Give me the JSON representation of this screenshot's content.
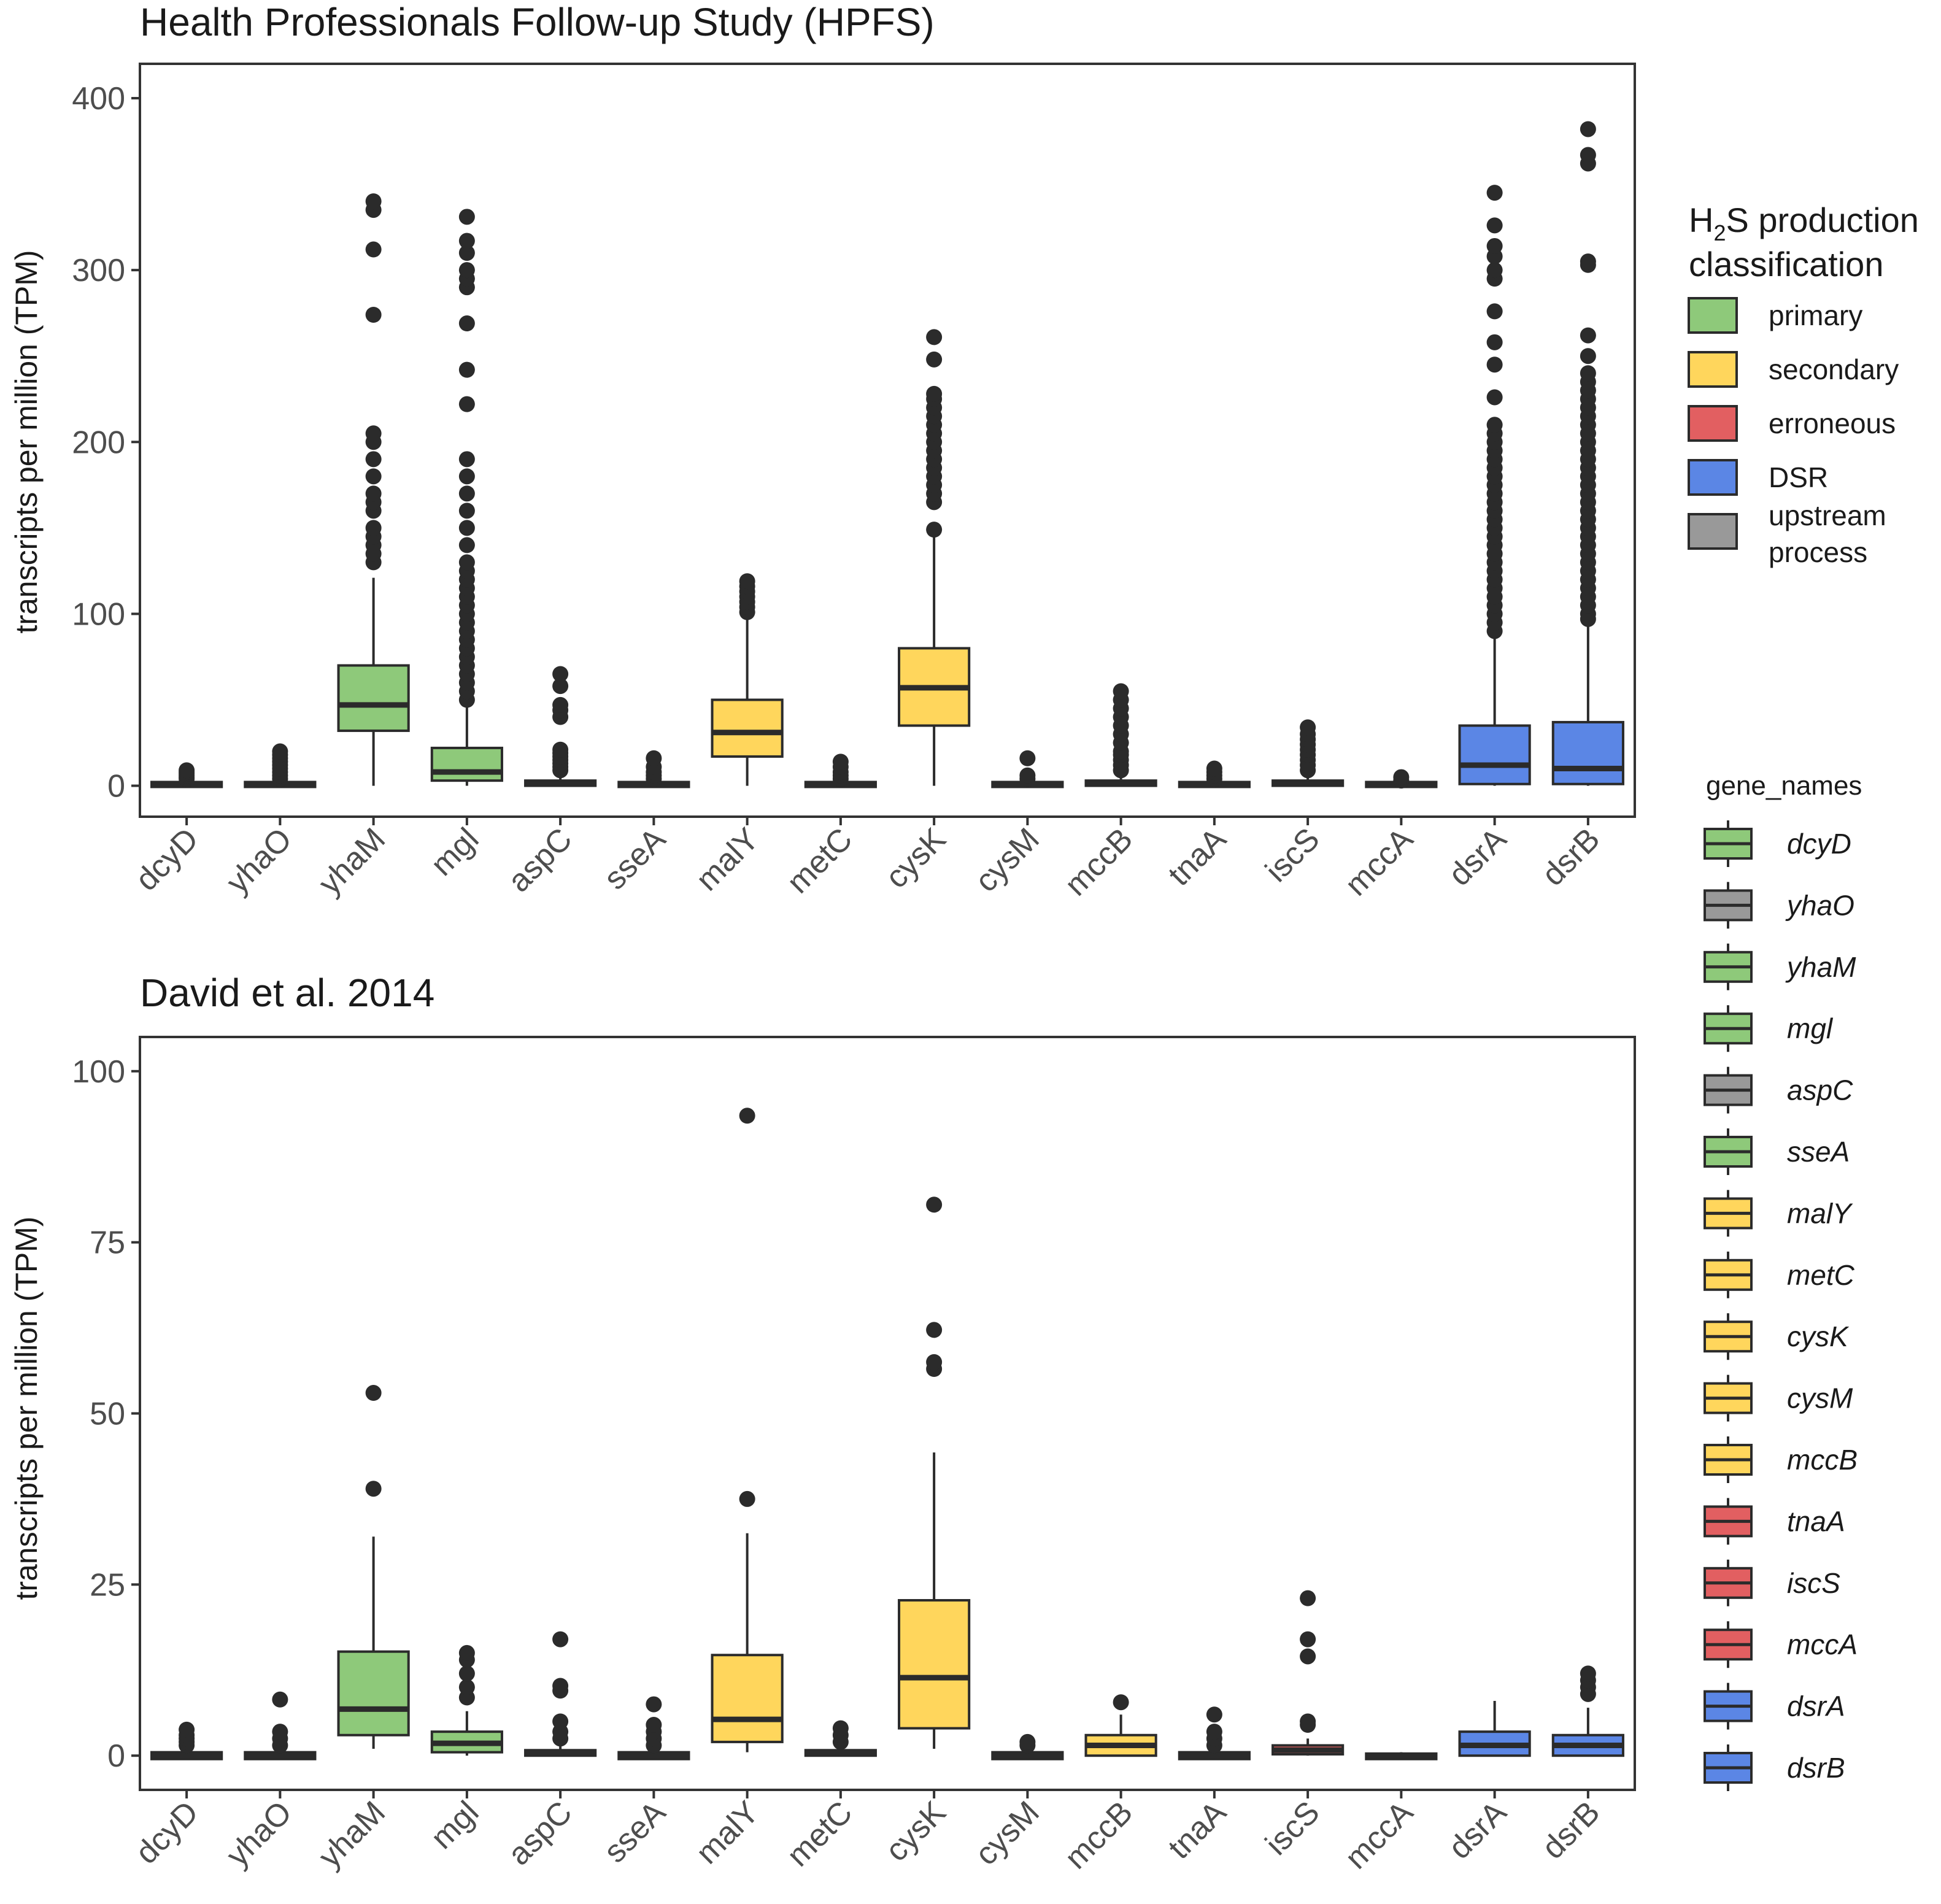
{
  "colors": {
    "primary": "#8ec97a",
    "secondary": "#ffd65c",
    "erroneous": "#e25f61",
    "DSR": "#5b86e5",
    "upstream process": "#999999",
    "outline": "#2b2b2b",
    "point": "#2b2b2b"
  },
  "chart_data": [
    {
      "type": "box",
      "title": "Health Professionals Follow-up Study (HPFS)",
      "xlabel": "",
      "ylabel": "transcripts per million (TPM)",
      "ylim": [
        -18,
        420
      ],
      "yticks": [
        0,
        100,
        200,
        300,
        400
      ],
      "categories": [
        "dcyD",
        "yhaO",
        "yhaM",
        "mgl",
        "aspC",
        "sseA",
        "malY",
        "metC",
        "cysK",
        "cysM",
        "mccB",
        "tnaA",
        "iscS",
        "mccA",
        "dsrA",
        "dsrB"
      ],
      "classes": [
        "primary",
        "upstream process",
        "primary",
        "primary",
        "upstream process",
        "primary",
        "secondary",
        "secondary",
        "secondary",
        "secondary",
        "secondary",
        "erroneous",
        "erroneous",
        "erroneous",
        "DSR",
        "DSR"
      ],
      "boxes": [
        {
          "q1": 0,
          "median": 0.5,
          "q3": 1.5,
          "lo": 0,
          "hi": 3,
          "outliers": [
            4,
            5,
            6,
            7,
            8,
            9
          ]
        },
        {
          "q1": 0,
          "median": 0.5,
          "q3": 1.5,
          "lo": 0,
          "hi": 3,
          "outliers": [
            4,
            6,
            8,
            10,
            12,
            14,
            16,
            18,
            20
          ]
        },
        {
          "q1": 32,
          "median": 47,
          "q3": 70,
          "lo": 0,
          "hi": 121,
          "outliers": [
            130,
            135,
            140,
            145,
            150,
            160,
            165,
            170,
            180,
            190,
            200,
            205,
            274,
            312,
            335,
            340
          ]
        },
        {
          "q1": 3,
          "median": 8,
          "q3": 22,
          "lo": 0,
          "hi": 47,
          "outliers": [
            50,
            55,
            60,
            65,
            70,
            75,
            80,
            85,
            90,
            95,
            100,
            105,
            110,
            115,
            120,
            125,
            130,
            140,
            150,
            160,
            170,
            180,
            190,
            222,
            242,
            269,
            290,
            295,
            300,
            310,
            317,
            331
          ]
        },
        {
          "q1": 0,
          "median": 1,
          "q3": 3,
          "lo": 0,
          "hi": 7,
          "outliers": [
            9,
            11,
            13,
            15,
            17,
            19,
            21,
            40,
            44,
            47,
            58,
            65
          ]
        },
        {
          "q1": 0,
          "median": 0.5,
          "q3": 1.5,
          "lo": 0,
          "hi": 3,
          "outliers": [
            4,
            6,
            8,
            11,
            16
          ]
        },
        {
          "q1": 17,
          "median": 31,
          "q3": 50,
          "lo": 0,
          "hi": 99,
          "outliers": [
            101,
            104,
            107,
            110,
            113,
            116,
            119
          ]
        },
        {
          "q1": 0,
          "median": 0.5,
          "q3": 1.5,
          "lo": 0,
          "hi": 3,
          "outliers": [
            4,
            6,
            8,
            11,
            14
          ]
        },
        {
          "q1": 35,
          "median": 57,
          "q3": 80,
          "lo": 0,
          "hi": 147,
          "outliers": [
            149,
            165,
            170,
            175,
            180,
            185,
            190,
            195,
            200,
            205,
            210,
            215,
            220,
            225,
            228,
            248,
            261
          ]
        },
        {
          "q1": 0,
          "median": 0.5,
          "q3": 1.5,
          "lo": 0,
          "hi": 3,
          "outliers": [
            4,
            6,
            16
          ]
        },
        {
          "q1": 0,
          "median": 1,
          "q3": 3,
          "lo": 0,
          "hi": 7,
          "outliers": [
            9,
            12,
            15,
            18,
            20,
            25,
            30,
            35,
            40,
            45,
            50,
            55
          ]
        },
        {
          "q1": 0,
          "median": 0.5,
          "q3": 1.5,
          "lo": 0,
          "hi": 3,
          "outliers": [
            4,
            6,
            8,
            10
          ]
        },
        {
          "q1": 0,
          "median": 1,
          "q3": 3,
          "lo": 0,
          "hi": 7,
          "outliers": [
            9,
            12,
            15,
            18,
            21,
            24,
            27,
            30,
            34
          ]
        },
        {
          "q1": 0,
          "median": 0.5,
          "q3": 1.5,
          "lo": 0,
          "hi": 2,
          "outliers": [
            3,
            5
          ]
        },
        {
          "q1": 1,
          "median": 12,
          "q3": 35,
          "lo": 0,
          "hi": 86,
          "outliers": [
            90,
            95,
            100,
            105,
            110,
            115,
            120,
            125,
            130,
            135,
            140,
            145,
            150,
            155,
            160,
            165,
            170,
            175,
            180,
            185,
            190,
            195,
            200,
            205,
            210,
            226,
            245,
            258,
            276,
            295,
            300,
            308,
            314,
            326,
            345
          ]
        },
        {
          "q1": 1,
          "median": 10,
          "q3": 37,
          "lo": 0,
          "hi": 94,
          "outliers": [
            97,
            100,
            105,
            110,
            115,
            120,
            125,
            130,
            135,
            140,
            145,
            150,
            155,
            160,
            165,
            170,
            175,
            180,
            185,
            190,
            195,
            200,
            205,
            210,
            215,
            220,
            225,
            230,
            235,
            240,
            250,
            262,
            303,
            305,
            362,
            367,
            382
          ]
        }
      ]
    },
    {
      "type": "box",
      "title": "David et al. 2014",
      "xlabel": "",
      "ylabel": "transcripts per million (TPM)",
      "ylim": [
        -5,
        105
      ],
      "yticks": [
        0,
        25,
        50,
        75,
        100
      ],
      "categories": [
        "dcyD",
        "yhaO",
        "yhaM",
        "mgl",
        "aspC",
        "sseA",
        "malY",
        "metC",
        "cysK",
        "cysM",
        "mccB",
        "tnaA",
        "iscS",
        "mccA",
        "dsrA",
        "dsrB"
      ],
      "classes": [
        "primary",
        "upstream process",
        "primary",
        "primary",
        "upstream process",
        "primary",
        "secondary",
        "secondary",
        "secondary",
        "secondary",
        "secondary",
        "erroneous",
        "erroneous",
        "erroneous",
        "DSR",
        "DSR"
      ],
      "boxes": [
        {
          "q1": -0.5,
          "median": 0,
          "q3": 0.5,
          "lo": -0.5,
          "hi": 1,
          "outliers": [
            1.5,
            2,
            2.5,
            3,
            3.8
          ]
        },
        {
          "q1": -0.5,
          "median": 0,
          "q3": 0.5,
          "lo": -0.5,
          "hi": 1,
          "outliers": [
            1.5,
            2.5,
            3.5,
            8.2
          ]
        },
        {
          "q1": 3,
          "median": 6.8,
          "q3": 15.2,
          "lo": 1,
          "hi": 32,
          "outliers": [
            39,
            53
          ]
        },
        {
          "q1": 0.5,
          "median": 1.8,
          "q3": 3.5,
          "lo": 0,
          "hi": 6.5,
          "outliers": [
            8.5,
            10,
            12,
            14,
            15
          ]
        },
        {
          "q1": 0,
          "median": 0.3,
          "q3": 0.8,
          "lo": 0,
          "hi": 1.5,
          "outliers": [
            2.5,
            3.5,
            5,
            9.5,
            10.2,
            17
          ]
        },
        {
          "q1": -0.5,
          "median": 0,
          "q3": 0.5,
          "lo": -0.5,
          "hi": 1,
          "outliers": [
            1.5,
            2.5,
            3.5,
            4.5,
            7.5
          ]
        },
        {
          "q1": 2,
          "median": 5.3,
          "q3": 14.7,
          "lo": 0.5,
          "hi": 32.5,
          "outliers": [
            37.5,
            93.5
          ]
        },
        {
          "q1": 0,
          "median": 0.3,
          "q3": 0.8,
          "lo": 0,
          "hi": 1.5,
          "outliers": [
            2,
            3,
            4
          ]
        },
        {
          "q1": 4,
          "median": 11.4,
          "q3": 22.7,
          "lo": 1,
          "hi": 44.3,
          "outliers": [
            56.5,
            57.5,
            62.2,
            80.5
          ]
        },
        {
          "q1": -0.5,
          "median": 0,
          "q3": 0.5,
          "lo": -0.5,
          "hi": 1,
          "outliers": [
            1.5,
            2
          ]
        },
        {
          "q1": 0,
          "median": 1.5,
          "q3": 3,
          "lo": 0,
          "hi": 6,
          "outliers": [
            7.8
          ]
        },
        {
          "q1": -0.5,
          "median": 0,
          "q3": 0.5,
          "lo": -0.5,
          "hi": 1,
          "outliers": [
            1.5,
            2.5,
            3.5,
            6
          ]
        },
        {
          "q1": 0.2,
          "median": 0.8,
          "q3": 1.5,
          "lo": 0,
          "hi": 2.5,
          "outliers": [
            4.5,
            5,
            14.5,
            17,
            23
          ]
        },
        {
          "q1": -0.5,
          "median": 0,
          "q3": 0.3,
          "lo": -0.5,
          "hi": 0.5,
          "outliers": []
        },
        {
          "q1": 0,
          "median": 1.5,
          "q3": 3.5,
          "lo": 0,
          "hi": 8,
          "outliers": []
        },
        {
          "q1": 0,
          "median": 1.5,
          "q3": 3,
          "lo": 0,
          "hi": 7,
          "outliers": [
            9,
            10,
            11,
            12
          ]
        }
      ]
    }
  ],
  "legend_class": {
    "title_pre": "H",
    "title_sub": "2",
    "title_post": "S production",
    "title_line2": "classification",
    "items": [
      {
        "label": "primary",
        "cls": "primary"
      },
      {
        "label": "secondary",
        "cls": "secondary"
      },
      {
        "label": "erroneous",
        "cls": "erroneous"
      },
      {
        "label": "DSR",
        "cls": "DSR"
      },
      {
        "label": "upstream",
        "label2": "process",
        "cls": "upstream process"
      }
    ]
  },
  "legend_genes": {
    "title": "gene_names",
    "items": [
      {
        "label": "dcyD",
        "cls": "primary"
      },
      {
        "label": "yhaO",
        "cls": "upstream process"
      },
      {
        "label": "yhaM",
        "cls": "primary"
      },
      {
        "label": "mgl",
        "cls": "primary"
      },
      {
        "label": "aspC",
        "cls": "upstream process"
      },
      {
        "label": "sseA",
        "cls": "primary"
      },
      {
        "label": "malY",
        "cls": "secondary"
      },
      {
        "label": "metC",
        "cls": "secondary"
      },
      {
        "label": "cysK",
        "cls": "secondary"
      },
      {
        "label": "cysM",
        "cls": "secondary"
      },
      {
        "label": "mccB",
        "cls": "secondary"
      },
      {
        "label": "tnaA",
        "cls": "erroneous"
      },
      {
        "label": "iscS",
        "cls": "erroneous"
      },
      {
        "label": "mccA",
        "cls": "erroneous"
      },
      {
        "label": "dsrA",
        "cls": "DSR"
      },
      {
        "label": "dsrB",
        "cls": "DSR"
      }
    ]
  }
}
